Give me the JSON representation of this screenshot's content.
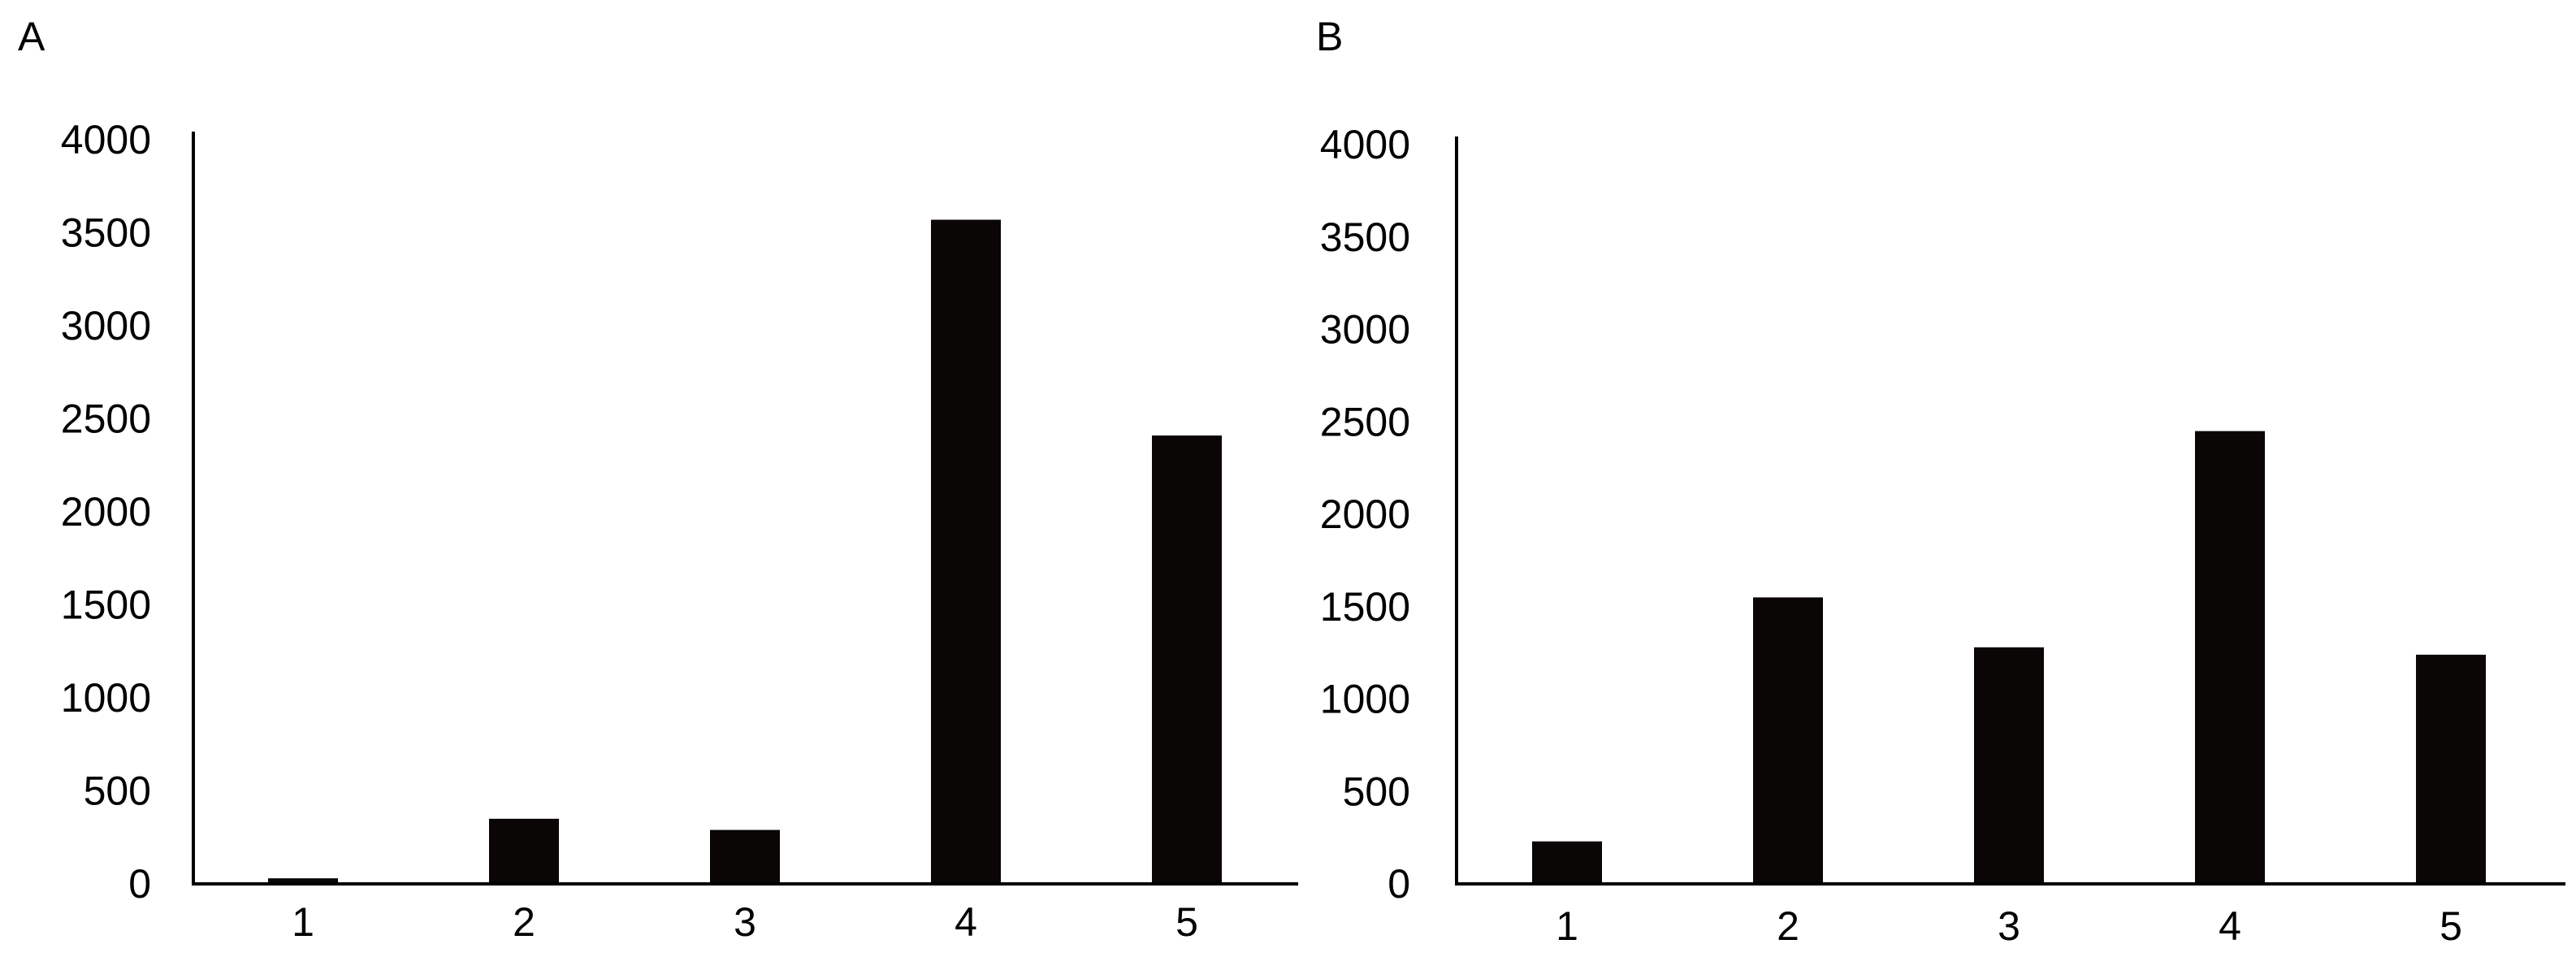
{
  "chart_data": [
    {
      "type": "bar",
      "panel_label": "A",
      "categories": [
        "1",
        "2",
        "3",
        "4",
        "5"
      ],
      "values": [
        30,
        350,
        290,
        3570,
        2410
      ],
      "ylim": [
        0,
        4000
      ],
      "yticks": [
        "0",
        "500",
        "1000",
        "1500",
        "2000",
        "2500",
        "3000",
        "3500",
        "4000"
      ],
      "title": "",
      "xlabel": "",
      "ylabel": "",
      "grid": false,
      "bar_color": "#0a0605"
    },
    {
      "type": "bar",
      "panel_label": "B",
      "categories": [
        "1",
        "2",
        "3",
        "4",
        "5"
      ],
      "values": [
        230,
        1550,
        1280,
        2450,
        1240
      ],
      "ylim": [
        0,
        4000
      ],
      "yticks": [
        "0",
        "500",
        "1000",
        "1500",
        "2000",
        "2500",
        "3000",
        "3500",
        "4000"
      ],
      "title": "",
      "xlabel": "",
      "ylabel": "",
      "grid": false,
      "bar_color": "#0a0605"
    }
  ]
}
